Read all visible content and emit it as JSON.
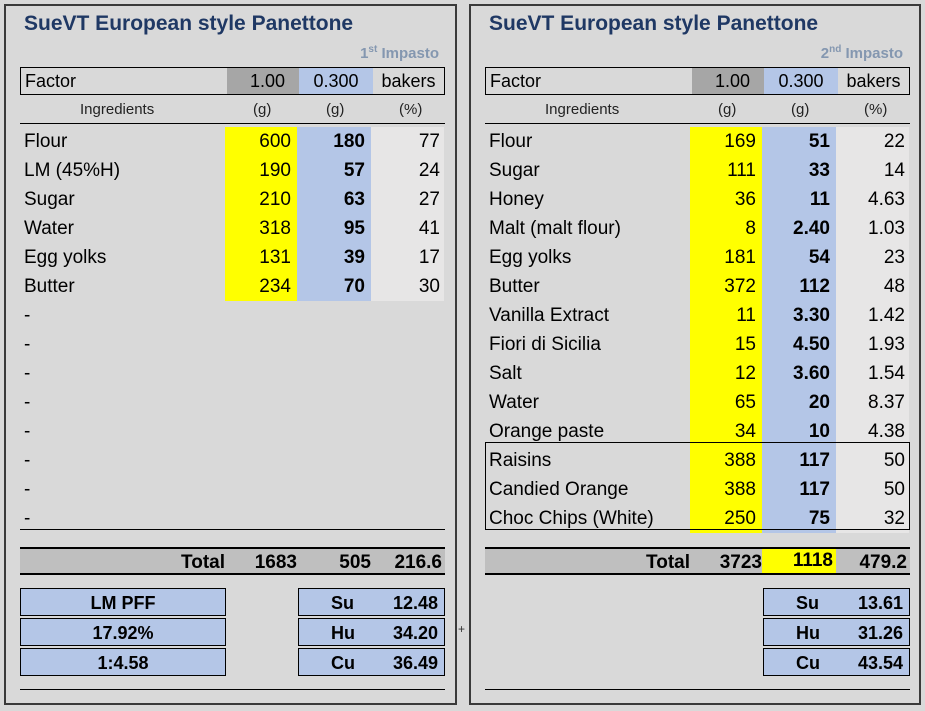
{
  "left": {
    "title": "SueVT European style Panettone",
    "subtitle_num": "1",
    "subtitle_sup": "st",
    "subtitle_text": " Impasto",
    "factor": {
      "label": "Factor",
      "v1": "1.00",
      "v2": "0.300",
      "unit": "bakers"
    },
    "headers": {
      "ingredients": "Ingredients",
      "g1": "(g)",
      "g2": "(g)",
      "pct": "(%)"
    },
    "rows": [
      {
        "name": "Flour",
        "g": "600",
        "b": "180",
        "p": "77"
      },
      {
        "name": "LM (45%H)",
        "g": "190",
        "b": "57",
        "p": "24"
      },
      {
        "name": "Sugar",
        "g": "210",
        "b": "63",
        "p": "27"
      },
      {
        "name": "Water",
        "g": "318",
        "b": "95",
        "p": "41"
      },
      {
        "name": "Egg yolks",
        "g": "131",
        "b": "39",
        "p": "17"
      },
      {
        "name": "Butter",
        "g": "234",
        "b": "70",
        "p": "30"
      }
    ],
    "dashes": [
      "-",
      "-",
      "-",
      "-",
      "-",
      "-",
      "-",
      "-"
    ],
    "total": {
      "label": "Total",
      "g": "1683",
      "b": "505",
      "p": "216.6"
    },
    "lm_boxes": [
      "LM PFF",
      "17.92%",
      "1:4.58"
    ],
    "stats": [
      {
        "k": "Su",
        "v": "12.48"
      },
      {
        "k": "Hu",
        "v": "34.20"
      },
      {
        "k": "Cu",
        "v": "36.49"
      }
    ],
    "plus": "+"
  },
  "right": {
    "title": "SueVT European style Panettone",
    "subtitle_num": "2",
    "subtitle_sup": "nd",
    "subtitle_text": " Impasto",
    "factor": {
      "label": "Factor",
      "v1": "1.00",
      "v2": "0.300",
      "unit": "bakers"
    },
    "headers": {
      "ingredients": "Ingredients",
      "g1": "(g)",
      "g2": "(g)",
      "pct": "(%)"
    },
    "rows": [
      {
        "name": "Flour",
        "g": "169",
        "b": "51",
        "p": "22"
      },
      {
        "name": "Sugar",
        "g": "111",
        "b": "33",
        "p": "14"
      },
      {
        "name": "Honey",
        "g": "36",
        "b": "11",
        "p": "4.63"
      },
      {
        "name": "Malt (malt flour)",
        "g": "8",
        "b": "2.40",
        "p": "1.03"
      },
      {
        "name": "Egg yolks",
        "g": "181",
        "b": "54",
        "p": "23"
      },
      {
        "name": "Butter",
        "g": "372",
        "b": "112",
        "p": "48"
      },
      {
        "name": "Vanilla Extract",
        "g": "11",
        "b": "3.30",
        "p": "1.42"
      },
      {
        "name": "Fiori di Sicilia",
        "g": "15",
        "b": "4.50",
        "p": "1.93"
      },
      {
        "name": "Salt",
        "g": "12",
        "b": "3.60",
        "p": "1.54"
      },
      {
        "name": "Water",
        "g": "65",
        "b": "20",
        "p": "8.37"
      },
      {
        "name": "Orange paste",
        "g": "34",
        "b": "10",
        "p": "4.38"
      },
      {
        "name": "Raisins",
        "g": "388",
        "b": "117",
        "p": "50"
      },
      {
        "name": "Candied Orange",
        "g": "388",
        "b": "117",
        "p": "50"
      },
      {
        "name": "Choc Chips (White)",
        "g": "250",
        "b": "75",
        "p": "32"
      }
    ],
    "total": {
      "label": "Total",
      "g": "3723",
      "b": "1118",
      "p": "479.2"
    },
    "stats": [
      {
        "k": "Su",
        "v": "13.61"
      },
      {
        "k": "Hu",
        "v": "31.26"
      },
      {
        "k": "Cu",
        "v": "43.54"
      }
    ]
  }
}
